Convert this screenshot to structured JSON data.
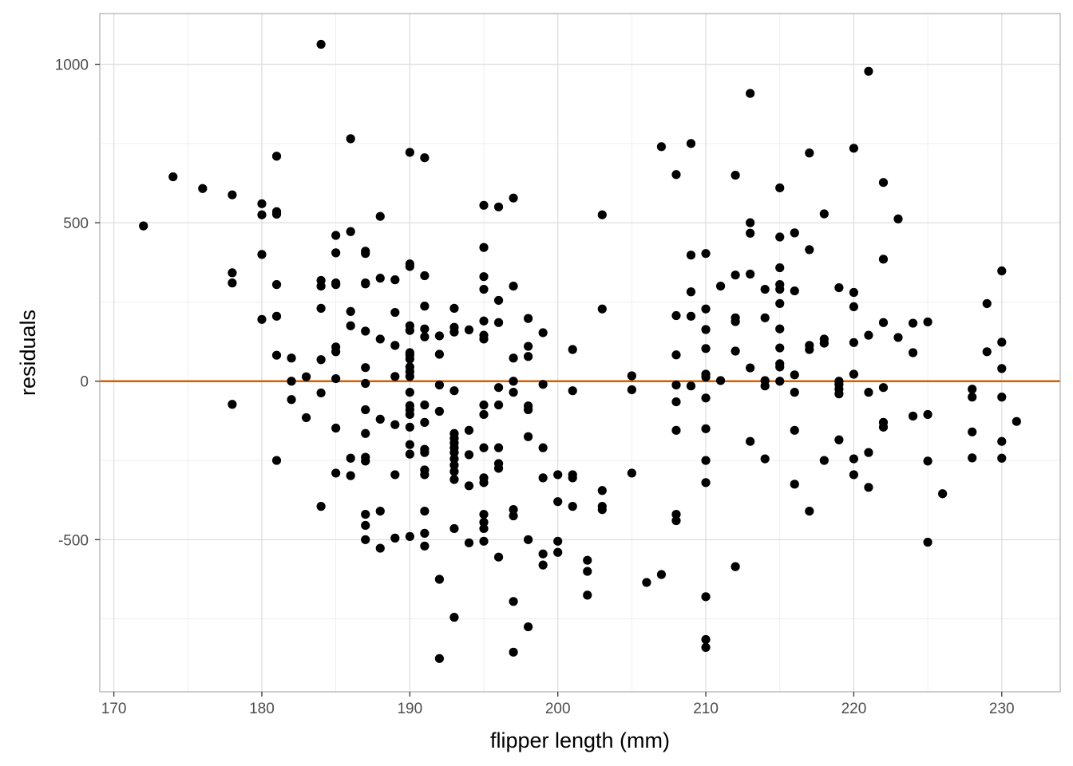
{
  "chart_data": {
    "type": "scatter",
    "title": "",
    "xlabel": "flipper length (mm)",
    "ylabel": "residuals",
    "xlim": [
      169.05,
      233.95
    ],
    "ylim": [
      -980,
      1160
    ],
    "x_ticks": [
      170,
      180,
      190,
      200,
      210,
      220,
      230
    ],
    "y_ticks": [
      -500,
      0,
      500,
      1000
    ],
    "grid": true,
    "legend": "none",
    "reference_line": {
      "y": 0,
      "color": "#D55E00"
    },
    "point_color": "#000000",
    "points": [
      [
        172,
        490
      ],
      [
        174,
        645
      ],
      [
        176,
        608
      ],
      [
        178,
        588
      ],
      [
        178,
        342
      ],
      [
        178,
        310
      ],
      [
        178,
        -73
      ],
      [
        180,
        560
      ],
      [
        180,
        525
      ],
      [
        180,
        400
      ],
      [
        180,
        195
      ],
      [
        181,
        710
      ],
      [
        181,
        535
      ],
      [
        181,
        527
      ],
      [
        181,
        305
      ],
      [
        181,
        205
      ],
      [
        181,
        82
      ],
      [
        181,
        -250
      ],
      [
        182,
        73
      ],
      [
        182,
        0
      ],
      [
        182,
        -58
      ],
      [
        183,
        14
      ],
      [
        183,
        -115
      ],
      [
        184,
        1063
      ],
      [
        184,
        318
      ],
      [
        184,
        300
      ],
      [
        184,
        230
      ],
      [
        184,
        68
      ],
      [
        184,
        -37
      ],
      [
        184,
        -395
      ],
      [
        185,
        460
      ],
      [
        185,
        405
      ],
      [
        185,
        310
      ],
      [
        185,
        305
      ],
      [
        185,
        108
      ],
      [
        185,
        93
      ],
      [
        185,
        8
      ],
      [
        185,
        -148
      ],
      [
        185,
        -290
      ],
      [
        186,
        765
      ],
      [
        186,
        472
      ],
      [
        186,
        220
      ],
      [
        186,
        175
      ],
      [
        186,
        -243
      ],
      [
        186,
        -298
      ],
      [
        187,
        410
      ],
      [
        187,
        403
      ],
      [
        187,
        310
      ],
      [
        187,
        307
      ],
      [
        187,
        158
      ],
      [
        187,
        43
      ],
      [
        187,
        -7
      ],
      [
        187,
        -90
      ],
      [
        187,
        -165
      ],
      [
        187,
        -240
      ],
      [
        187,
        -252
      ],
      [
        187,
        -420
      ],
      [
        187,
        -455
      ],
      [
        187,
        -500
      ],
      [
        188,
        520
      ],
      [
        188,
        325
      ],
      [
        188,
        133
      ],
      [
        188,
        -120
      ],
      [
        188,
        -410
      ],
      [
        188,
        -527
      ],
      [
        189,
        320
      ],
      [
        189,
        217
      ],
      [
        189,
        113
      ],
      [
        189,
        15
      ],
      [
        189,
        -137
      ],
      [
        189,
        -295
      ],
      [
        189,
        -495
      ],
      [
        190,
        722
      ],
      [
        190,
        370
      ],
      [
        190,
        362
      ],
      [
        190,
        175
      ],
      [
        190,
        160
      ],
      [
        190,
        90
      ],
      [
        190,
        82
      ],
      [
        190,
        70
      ],
      [
        190,
        45
      ],
      [
        190,
        30
      ],
      [
        190,
        15
      ],
      [
        190,
        -35
      ],
      [
        190,
        -77
      ],
      [
        190,
        -90
      ],
      [
        190,
        -105
      ],
      [
        190,
        -145
      ],
      [
        190,
        -200
      ],
      [
        190,
        -230
      ],
      [
        190,
        -490
      ],
      [
        191,
        705
      ],
      [
        191,
        333
      ],
      [
        191,
        237
      ],
      [
        191,
        165
      ],
      [
        191,
        140
      ],
      [
        191,
        -75
      ],
      [
        191,
        -130
      ],
      [
        191,
        -215
      ],
      [
        191,
        -225
      ],
      [
        191,
        -280
      ],
      [
        191,
        -295
      ],
      [
        191,
        -410
      ],
      [
        191,
        -480
      ],
      [
        191,
        -520
      ],
      [
        192,
        143
      ],
      [
        192,
        85
      ],
      [
        192,
        -12
      ],
      [
        192,
        -95
      ],
      [
        192,
        -625
      ],
      [
        192,
        -875
      ],
      [
        193,
        230
      ],
      [
        193,
        170
      ],
      [
        193,
        155
      ],
      [
        193,
        -30
      ],
      [
        193,
        -165
      ],
      [
        193,
        -180
      ],
      [
        193,
        -195
      ],
      [
        193,
        -210
      ],
      [
        193,
        -225
      ],
      [
        193,
        -245
      ],
      [
        193,
        -265
      ],
      [
        193,
        -285
      ],
      [
        193,
        -310
      ],
      [
        193,
        -465
      ],
      [
        193,
        -745
      ],
      [
        194,
        162
      ],
      [
        194,
        -155
      ],
      [
        194,
        -232
      ],
      [
        194,
        -330
      ],
      [
        194,
        -510
      ],
      [
        195,
        555
      ],
      [
        195,
        422
      ],
      [
        195,
        330
      ],
      [
        195,
        290
      ],
      [
        195,
        190
      ],
      [
        195,
        145
      ],
      [
        195,
        133
      ],
      [
        195,
        -75
      ],
      [
        195,
        -105
      ],
      [
        195,
        -210
      ],
      [
        195,
        -305
      ],
      [
        195,
        -320
      ],
      [
        195,
        -420
      ],
      [
        195,
        -445
      ],
      [
        195,
        -465
      ],
      [
        195,
        -505
      ],
      [
        196,
        550
      ],
      [
        196,
        255
      ],
      [
        196,
        185
      ],
      [
        196,
        -20
      ],
      [
        196,
        -75
      ],
      [
        196,
        -210
      ],
      [
        196,
        -260
      ],
      [
        196,
        -275
      ],
      [
        196,
        -555
      ],
      [
        197,
        578
      ],
      [
        197,
        300
      ],
      [
        197,
        73
      ],
      [
        197,
        0
      ],
      [
        197,
        -35
      ],
      [
        197,
        -405
      ],
      [
        197,
        -425
      ],
      [
        197,
        -695
      ],
      [
        197,
        -855
      ],
      [
        198,
        198
      ],
      [
        198,
        110
      ],
      [
        198,
        78
      ],
      [
        198,
        -78
      ],
      [
        198,
        -90
      ],
      [
        198,
        -175
      ],
      [
        198,
        -500
      ],
      [
        198,
        -775
      ],
      [
        199,
        153
      ],
      [
        199,
        -10
      ],
      [
        199,
        -210
      ],
      [
        199,
        -305
      ],
      [
        199,
        -545
      ],
      [
        199,
        -580
      ],
      [
        200,
        -295
      ],
      [
        200,
        -380
      ],
      [
        200,
        -505
      ],
      [
        200,
        -540
      ],
      [
        201,
        100
      ],
      [
        201,
        -30
      ],
      [
        201,
        -295
      ],
      [
        201,
        -305
      ],
      [
        201,
        -395
      ],
      [
        202,
        -565
      ],
      [
        202,
        -600
      ],
      [
        202,
        -675
      ],
      [
        203,
        525
      ],
      [
        203,
        228
      ],
      [
        203,
        -345
      ],
      [
        203,
        -395
      ],
      [
        203,
        -405
      ],
      [
        205,
        17
      ],
      [
        205,
        -27
      ],
      [
        205,
        -290
      ],
      [
        206,
        -635
      ],
      [
        207,
        740
      ],
      [
        207,
        -610
      ],
      [
        208,
        652
      ],
      [
        208,
        207
      ],
      [
        208,
        83
      ],
      [
        208,
        -12
      ],
      [
        208,
        -65
      ],
      [
        208,
        -155
      ],
      [
        208,
        -420
      ],
      [
        208,
        -440
      ],
      [
        209,
        750
      ],
      [
        209,
        398
      ],
      [
        209,
        282
      ],
      [
        209,
        205
      ],
      [
        209,
        -15
      ],
      [
        210,
        403
      ],
      [
        210,
        228
      ],
      [
        210,
        163
      ],
      [
        210,
        103
      ],
      [
        210,
        22
      ],
      [
        210,
        13
      ],
      [
        210,
        -53
      ],
      [
        210,
        -150
      ],
      [
        210,
        -250
      ],
      [
        210,
        -320
      ],
      [
        210,
        -680
      ],
      [
        210,
        -815
      ],
      [
        210,
        -840
      ],
      [
        211,
        300
      ],
      [
        211,
        2
      ],
      [
        212,
        650
      ],
      [
        212,
        335
      ],
      [
        212,
        200
      ],
      [
        212,
        188
      ],
      [
        212,
        95
      ],
      [
        212,
        -585
      ],
      [
        213,
        908
      ],
      [
        213,
        500
      ],
      [
        213,
        467
      ],
      [
        213,
        338
      ],
      [
        213,
        42
      ],
      [
        213,
        -190
      ],
      [
        214,
        290
      ],
      [
        214,
        200
      ],
      [
        214,
        2
      ],
      [
        214,
        -15
      ],
      [
        214,
        -245
      ],
      [
        215,
        610
      ],
      [
        215,
        455
      ],
      [
        215,
        358
      ],
      [
        215,
        305
      ],
      [
        215,
        290
      ],
      [
        215,
        245
      ],
      [
        215,
        165
      ],
      [
        215,
        105
      ],
      [
        215,
        55
      ],
      [
        215,
        45
      ],
      [
        215,
        0
      ],
      [
        216,
        468
      ],
      [
        216,
        285
      ],
      [
        216,
        20
      ],
      [
        216,
        -35
      ],
      [
        216,
        -155
      ],
      [
        216,
        -325
      ],
      [
        217,
        720
      ],
      [
        217,
        415
      ],
      [
        217,
        113
      ],
      [
        217,
        100
      ],
      [
        217,
        -410
      ],
      [
        218,
        528
      ],
      [
        218,
        133
      ],
      [
        218,
        120
      ],
      [
        218,
        -250
      ],
      [
        219,
        295
      ],
      [
        219,
        0
      ],
      [
        219,
        -10
      ],
      [
        219,
        -25
      ],
      [
        219,
        -40
      ],
      [
        219,
        -185
      ],
      [
        220,
        735
      ],
      [
        220,
        280
      ],
      [
        220,
        235
      ],
      [
        220,
        122
      ],
      [
        220,
        22
      ],
      [
        220,
        -245
      ],
      [
        220,
        -295
      ],
      [
        221,
        978
      ],
      [
        221,
        145
      ],
      [
        221,
        -35
      ],
      [
        221,
        -225
      ],
      [
        221,
        -335
      ],
      [
        222,
        627
      ],
      [
        222,
        385
      ],
      [
        222,
        185
      ],
      [
        222,
        -20
      ],
      [
        222,
        -130
      ],
      [
        222,
        -145
      ],
      [
        223,
        512
      ],
      [
        223,
        138
      ],
      [
        224,
        183
      ],
      [
        224,
        90
      ],
      [
        224,
        -110
      ],
      [
        225,
        187
      ],
      [
        225,
        -105
      ],
      [
        225,
        -252
      ],
      [
        225,
        -508
      ],
      [
        226,
        -355
      ],
      [
        228,
        -25
      ],
      [
        228,
        -50
      ],
      [
        228,
        -160
      ],
      [
        228,
        -242
      ],
      [
        229,
        245
      ],
      [
        229,
        93
      ],
      [
        230,
        348
      ],
      [
        230,
        123
      ],
      [
        230,
        40
      ],
      [
        230,
        -50
      ],
      [
        230,
        -190
      ],
      [
        230,
        -243
      ],
      [
        231,
        -127
      ]
    ]
  }
}
